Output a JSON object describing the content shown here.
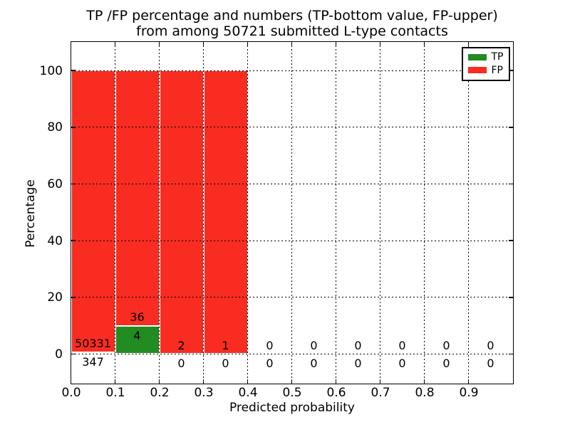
{
  "figure": {
    "title_line1": "TP /FP percentage and numbers (TP-bottom value, FP-upper)",
    "title_line2": "from among 50721 submitted L-type contacts"
  },
  "chart_data": {
    "type": "bar",
    "stacked": true,
    "title": "TP /FP percentage and numbers (TP-bottom value, FP-upper)\nfrom among 50721 submitted L-type contacts",
    "xlabel": "Predicted probability",
    "ylabel": "Percentage",
    "total_contacts": 50721,
    "bin_width": 0.1,
    "bin_starts": [
      0.0,
      0.1,
      0.2,
      0.3,
      0.4,
      0.5,
      0.6,
      0.7,
      0.8,
      0.9
    ],
    "series": [
      {
        "name": "TP",
        "color": "#228b22",
        "counts": [
          347,
          4,
          0,
          0,
          0,
          0,
          0,
          0,
          0,
          0
        ]
      },
      {
        "name": "FP",
        "color": "#f92c21",
        "counts": [
          50331,
          36,
          2,
          1,
          0,
          0,
          0,
          0,
          0,
          0
        ]
      }
    ],
    "bar_heights_percent_of_bin": {
      "TP": [
        0.68,
        10.0,
        0,
        0,
        0,
        0,
        0,
        0,
        0,
        0
      ],
      "FP": [
        99.32,
        90.0,
        100,
        100,
        0,
        0,
        0,
        0,
        0,
        0
      ]
    },
    "xticks": {
      "values": [
        0.0,
        0.1,
        0.2,
        0.3,
        0.4,
        0.5,
        0.6,
        0.7,
        0.8,
        0.9
      ],
      "labels": [
        "0.0",
        "0.1",
        "0.2",
        "0.3",
        "0.4",
        "0.5",
        "0.6",
        "0.7",
        "0.8",
        "0.9"
      ]
    },
    "yticks": {
      "values": [
        0,
        20,
        40,
        60,
        80,
        100
      ],
      "labels": [
        "0",
        "20",
        "40",
        "60",
        "80",
        "100"
      ]
    },
    "xlim": [
      0.0,
      1.0
    ],
    "ylim": [
      -10.3,
      110.2
    ],
    "grid": true,
    "legend": {
      "position": "upper right",
      "items": [
        {
          "label": "TP",
          "color": "#228b22"
        },
        {
          "label": "FP",
          "color": "#f92c21"
        }
      ]
    }
  }
}
